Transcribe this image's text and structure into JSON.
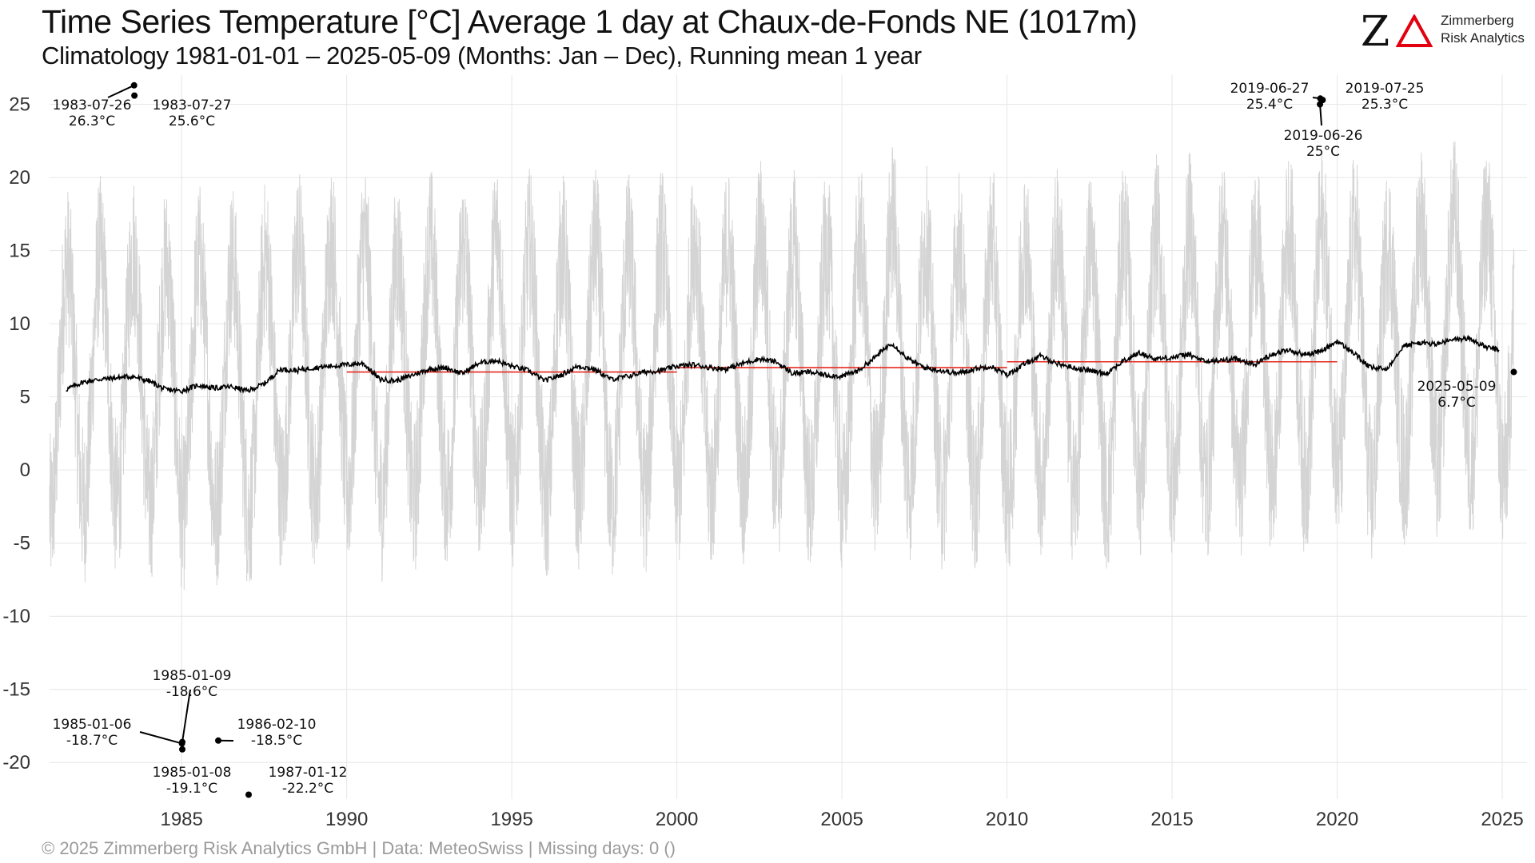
{
  "title": "Time Series Temperature [°C] Average 1 day at Chaux-de-Fonds  NE (1017m)",
  "subtitle": "Climatology 1981-01-01 – 2025-05-09 (Months: Jan – Dec), Running mean 1 year",
  "logo": {
    "mark": "Z",
    "line1": "Zimmerberg",
    "line2": "Risk Analytics",
    "delta_color": "#e3000f"
  },
  "footer": "©  2025 Zimmerberg Risk Analytics GmbH | Data: MeteoSwiss | Missing days: 0 ()",
  "chart_data": {
    "type": "line",
    "xlabel": "",
    "ylabel": "",
    "xlim": [
      1981.0,
      2025.75
    ],
    "ylim": [
      -22.5,
      27.0
    ],
    "x_ticks": [
      1985,
      1990,
      1995,
      2000,
      2005,
      2010,
      2015,
      2020,
      2025
    ],
    "y_ticks": [
      25,
      20,
      15,
      10,
      5,
      0,
      -5,
      -10,
      -15,
      -20
    ],
    "grid": true,
    "colors": {
      "daily": "#d4d4d4",
      "running_mean": "#000000",
      "decade_mean": "#e8281e",
      "points": "#000000"
    },
    "running_mean_1y": {
      "x": [
        1981.5,
        1982.0,
        1982.5,
        1983.0,
        1983.5,
        1984.0,
        1984.5,
        1985.0,
        1985.5,
        1986.0,
        1986.5,
        1987.0,
        1987.5,
        1988.0,
        1988.5,
        1989.0,
        1989.5,
        1990.0,
        1990.5,
        1991.0,
        1991.5,
        1992.0,
        1992.5,
        1993.0,
        1993.5,
        1994.0,
        1994.5,
        1995.0,
        1995.5,
        1996.0,
        1996.5,
        1997.0,
        1997.5,
        1998.0,
        1998.5,
        1999.0,
        1999.5,
        2000.0,
        2000.5,
        2001.0,
        2001.5,
        2002.0,
        2002.5,
        2003.0,
        2003.5,
        2004.0,
        2004.5,
        2005.0,
        2005.5,
        2006.0,
        2006.5,
        2007.0,
        2007.5,
        2008.0,
        2008.5,
        2009.0,
        2009.5,
        2010.0,
        2010.5,
        2011.0,
        2011.5,
        2012.0,
        2012.5,
        2013.0,
        2013.5,
        2014.0,
        2014.5,
        2015.0,
        2015.5,
        2016.0,
        2016.5,
        2017.0,
        2017.5,
        2018.0,
        2018.5,
        2019.0,
        2019.5,
        2020.0,
        2020.5,
        2021.0,
        2021.5,
        2022.0,
        2022.5,
        2023.0,
        2023.5,
        2024.0,
        2024.5,
        2024.9
      ],
      "y": [
        5.5,
        6.0,
        6.2,
        6.3,
        6.4,
        6.1,
        5.5,
        5.4,
        5.8,
        5.6,
        5.7,
        5.4,
        5.9,
        6.9,
        6.8,
        7.0,
        7.1,
        7.2,
        7.3,
        6.2,
        6.1,
        6.5,
        6.9,
        7.0,
        6.6,
        7.3,
        7.5,
        7.1,
        6.8,
        6.1,
        6.5,
        7.1,
        6.9,
        6.2,
        6.4,
        6.7,
        6.8,
        7.1,
        7.2,
        7.0,
        6.9,
        7.3,
        7.6,
        7.4,
        6.6,
        6.7,
        6.5,
        6.4,
        6.8,
        7.7,
        8.7,
        7.6,
        7.0,
        6.8,
        6.6,
        6.9,
        7.1,
        6.5,
        7.2,
        7.8,
        7.3,
        7.0,
        6.8,
        6.6,
        7.4,
        8.0,
        7.6,
        7.7,
        7.9,
        7.4,
        7.5,
        7.6,
        7.2,
        7.9,
        8.2,
        7.9,
        8.1,
        8.8,
        8.0,
        7.0,
        6.9,
        8.5,
        8.7,
        8.6,
        8.9,
        9.0,
        8.4,
        8.2
      ]
    },
    "decade_means": [
      {
        "x": [
          1990.0,
          2000.0
        ],
        "y": 6.7
      },
      {
        "x": [
          2000.0,
          2010.0
        ],
        "y": 7.0
      },
      {
        "x": [
          2010.0,
          2020.0
        ],
        "y": 7.4
      }
    ],
    "annotations": [
      {
        "date": "1983-07-26",
        "value": "26.3°C",
        "x": 1983.56,
        "y": 26.3
      },
      {
        "date": "1983-07-27",
        "value": "25.6°C",
        "x": 1983.57,
        "y": 25.6
      },
      {
        "date": "2019-06-27",
        "value": "25.4°C",
        "x": 2019.49,
        "y": 25.4
      },
      {
        "date": "2019-07-25",
        "value": "25.3°C",
        "x": 2019.56,
        "y": 25.3
      },
      {
        "date": "2019-06-26",
        "value": "25°C",
        "x": 2019.48,
        "y": 25.0
      },
      {
        "date": "2025-05-09",
        "value": "6.7°C",
        "x": 2025.35,
        "y": 6.7
      },
      {
        "date": "1985-01-09",
        "value": "-18.6°C",
        "x": 1985.02,
        "y": -18.6
      },
      {
        "date": "1985-01-06",
        "value": "-18.7°C",
        "x": 1985.01,
        "y": -18.7
      },
      {
        "date": "1985-01-08",
        "value": "-19.1°C",
        "x": 1985.02,
        "y": -19.1
      },
      {
        "date": "1986-02-10",
        "value": "-18.5°C",
        "x": 1986.11,
        "y": -18.5
      },
      {
        "date": "1987-01-12",
        "value": "-22.2°C",
        "x": 1987.03,
        "y": -22.2
      }
    ]
  }
}
